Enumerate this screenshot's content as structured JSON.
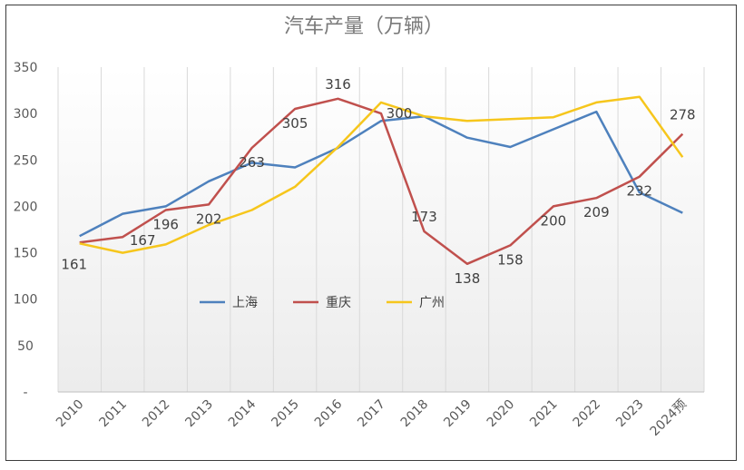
{
  "chart_data": {
    "type": "line",
    "title": "汽车产量（万辆）",
    "categories": [
      "2010",
      "2011",
      "2012",
      "2013",
      "2014",
      "2015",
      "2016",
      "2017",
      "2018",
      "2019",
      "2020",
      "2021",
      "2022",
      "2023",
      "2024预"
    ],
    "y_ticks": [
      "350",
      "300",
      "250",
      "200",
      "150",
      "100",
      "50",
      "-"
    ],
    "ylim": [
      0,
      350
    ],
    "legend_position": "center",
    "series": [
      {
        "name": "上海",
        "color": "#4e81bd",
        "values": [
          168,
          192,
          200,
          227,
          247,
          242,
          263,
          292,
          297,
          274,
          264,
          283,
          302,
          215,
          193
        ]
      },
      {
        "name": "重庆",
        "color": "#c0504d",
        "values": [
          161,
          167,
          196,
          202,
          263,
          305,
          316,
          300,
          173,
          138,
          158,
          200,
          209,
          232,
          278
        ],
        "labels": [
          "161",
          "167",
          "196",
          "202",
          "263",
          "305",
          "316",
          "300",
          "173",
          "138",
          "158",
          "200",
          "209",
          "232",
          "278"
        ]
      },
      {
        "name": "广州",
        "color": "#f6c61c",
        "values": [
          160,
          150,
          159,
          180,
          196,
          221,
          264,
          312,
          297,
          292,
          294,
          296,
          312,
          318,
          253
        ]
      }
    ]
  }
}
